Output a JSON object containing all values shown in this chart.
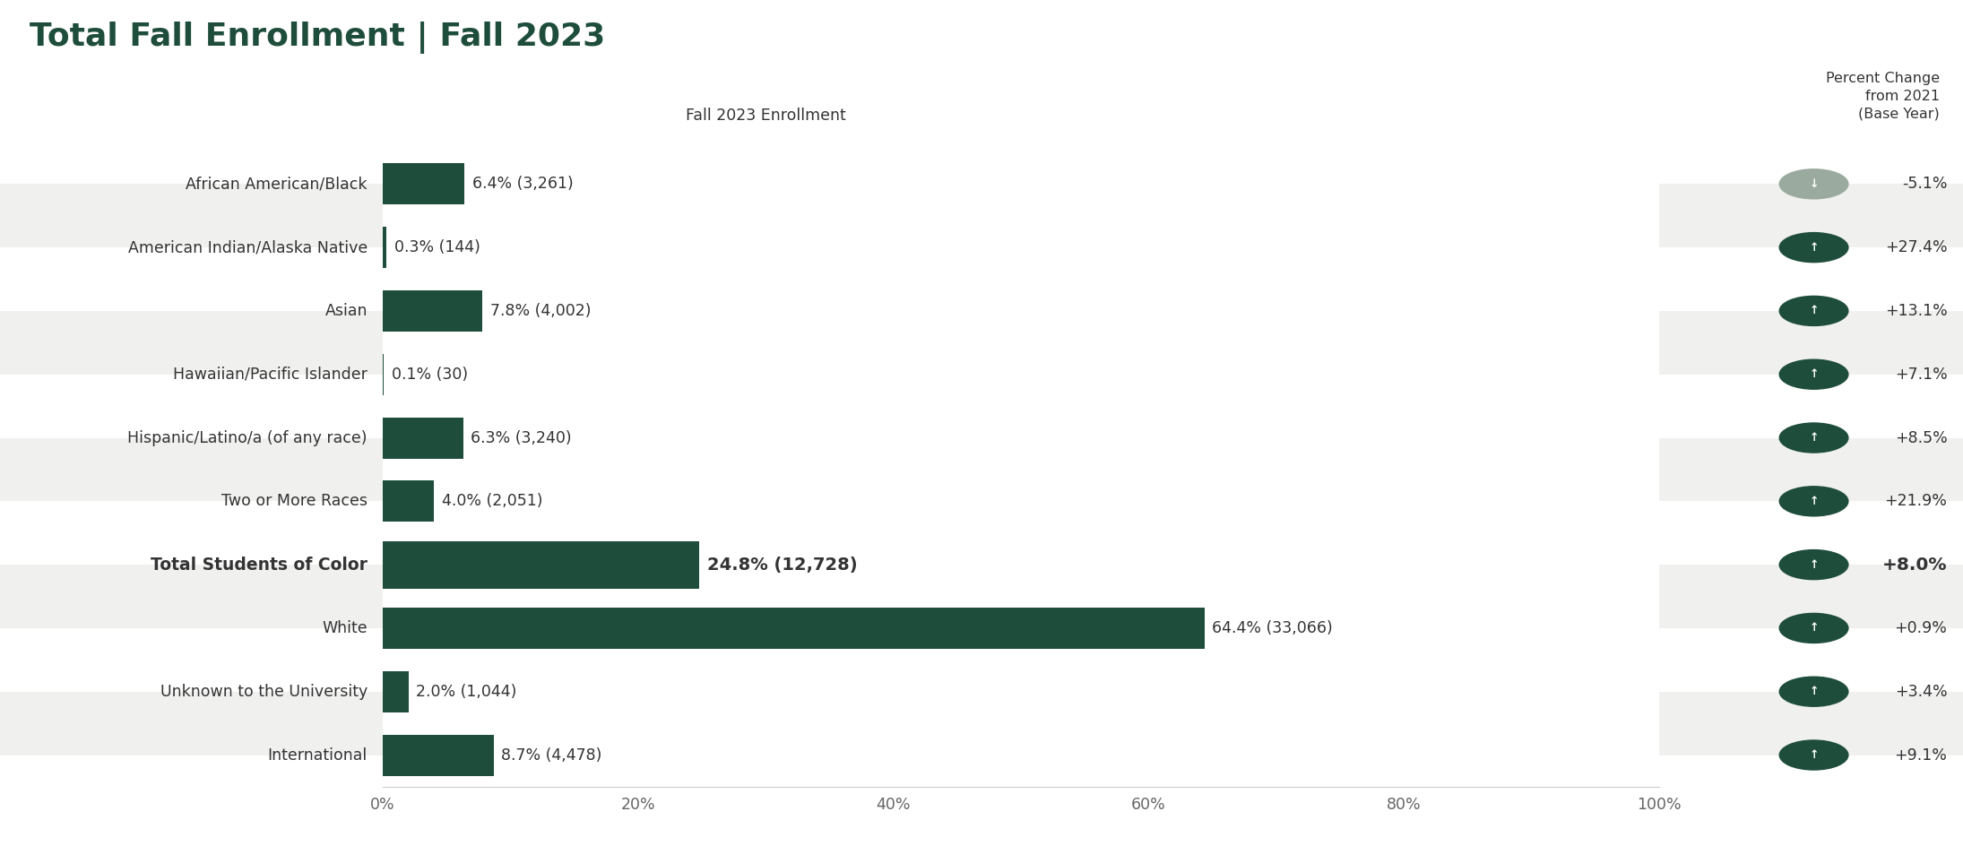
{
  "title": "Total Fall Enrollment | Fall 2023",
  "subtitle": "Fall 2023 Enrollment",
  "pct_change_header": "Percent Change\nfrom 2021\n(Base Year)",
  "categories": [
    "African American/Black",
    "American Indian/Alaska Native",
    "Asian",
    "Hawaiian/Pacific Islander",
    "Hispanic/Latino/a (of any race)",
    "Two or More Races",
    "Total Students of Color",
    "White",
    "Unknown to the University",
    "International"
  ],
  "values": [
    6.4,
    0.3,
    7.8,
    0.1,
    6.3,
    4.0,
    24.8,
    64.4,
    2.0,
    8.7
  ],
  "labels": [
    "6.4% (3,261)",
    "0.3% (144)",
    "7.8% (4,002)",
    "0.1% (30)",
    "6.3% (3,240)",
    "4.0% (2,051)",
    "24.8% (12,728)",
    "64.4% (33,066)",
    "2.0% (1,044)",
    "8.7% (4,478)"
  ],
  "pct_changes": [
    "-5.1%",
    "+27.4%",
    "+13.1%",
    "+7.1%",
    "+8.5%",
    "+21.9%",
    "+8.0%",
    "+0.9%",
    "+3.4%",
    "+9.1%"
  ],
  "pct_change_values": [
    -5.1,
    27.4,
    13.1,
    7.1,
    8.5,
    21.9,
    8.0,
    0.9,
    3.4,
    9.1
  ],
  "is_bold_row": [
    false,
    false,
    false,
    false,
    false,
    false,
    true,
    false,
    false,
    false
  ],
  "is_shaded_row": [
    true,
    false,
    true,
    false,
    true,
    false,
    true,
    false,
    true,
    false
  ],
  "bar_color": "#1e4d3b",
  "up_arrow_color": "#1e4d3b",
  "down_arrow_color": "#9aaa9e",
  "background_color": "#ffffff",
  "shaded_row_color": "#f0f0ee",
  "title_color": "#1e4d3b",
  "text_color": "#333333",
  "axis_label_color": "#666666",
  "xlabel_ticks": [
    "0%",
    "20%",
    "40%",
    "60%",
    "80%",
    "100%"
  ],
  "xlabel_values": [
    0,
    20,
    40,
    60,
    80,
    100
  ]
}
